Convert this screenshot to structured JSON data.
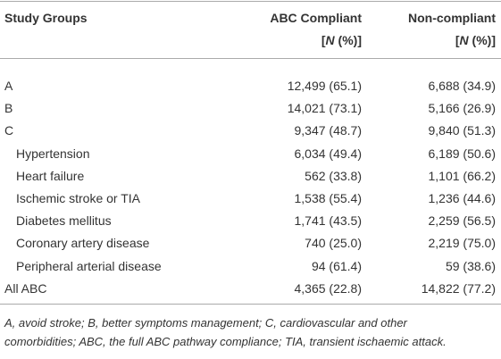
{
  "table": {
    "header": [
      "Study Groups"
    ],
    "columns": [
      {
        "title": "ABC Compliant",
        "sub": [
          "[",
          "N",
          " (%)]"
        ]
      },
      {
        "title": "Non-compliant",
        "sub": [
          "[",
          "N",
          " (%)]"
        ]
      }
    ],
    "rows": [
      {
        "label": "A",
        "cells": [
          "12,499 (65.1)",
          "6,688 (34.9)"
        ]
      },
      {
        "label": "B",
        "cells": [
          "14,021 (73.1)",
          "5,166 (26.9)"
        ]
      },
      {
        "label": "C",
        "cells": [
          "9,347 (48.7)",
          "9,840 (51.3)"
        ],
        "subgroups": [
          {
            "label": "Hypertension",
            "cells": [
              "6,034 (49.4)",
              "6,189 (50.6)"
            ]
          },
          {
            "label": "Heart failure",
            "cells": [
              "562 (33.8)",
              "1,101 (66.2)"
            ]
          },
          {
            "label": "Ischemic stroke or TIA",
            "cells": [
              "1,538 (55.4)",
              "1,236 (44.6)"
            ]
          },
          {
            "label": "Diabetes mellitus",
            "cells": [
              "1,741 (43.5)",
              "2,259 (56.5)"
            ]
          },
          {
            "label": "Coronary artery disease",
            "cells": [
              "740 (25.0)",
              "2,219 (75.0)"
            ]
          },
          {
            "label": "Peripheral arterial disease",
            "cells": [
              "94 (61.4)",
              "59 (38.6)"
            ]
          }
        ]
      },
      {
        "label": "All ABC",
        "cells": [
          "4,365 (22.8)",
          "14,822 (77.2)"
        ]
      }
    ],
    "footnote": [
      "A, avoid stroke; B, better symptoms management; C, cardiovascular and other",
      "comorbidities; ABC, the full ABC pathway compliance; TIA, transient ischaemic attack."
    ]
  }
}
